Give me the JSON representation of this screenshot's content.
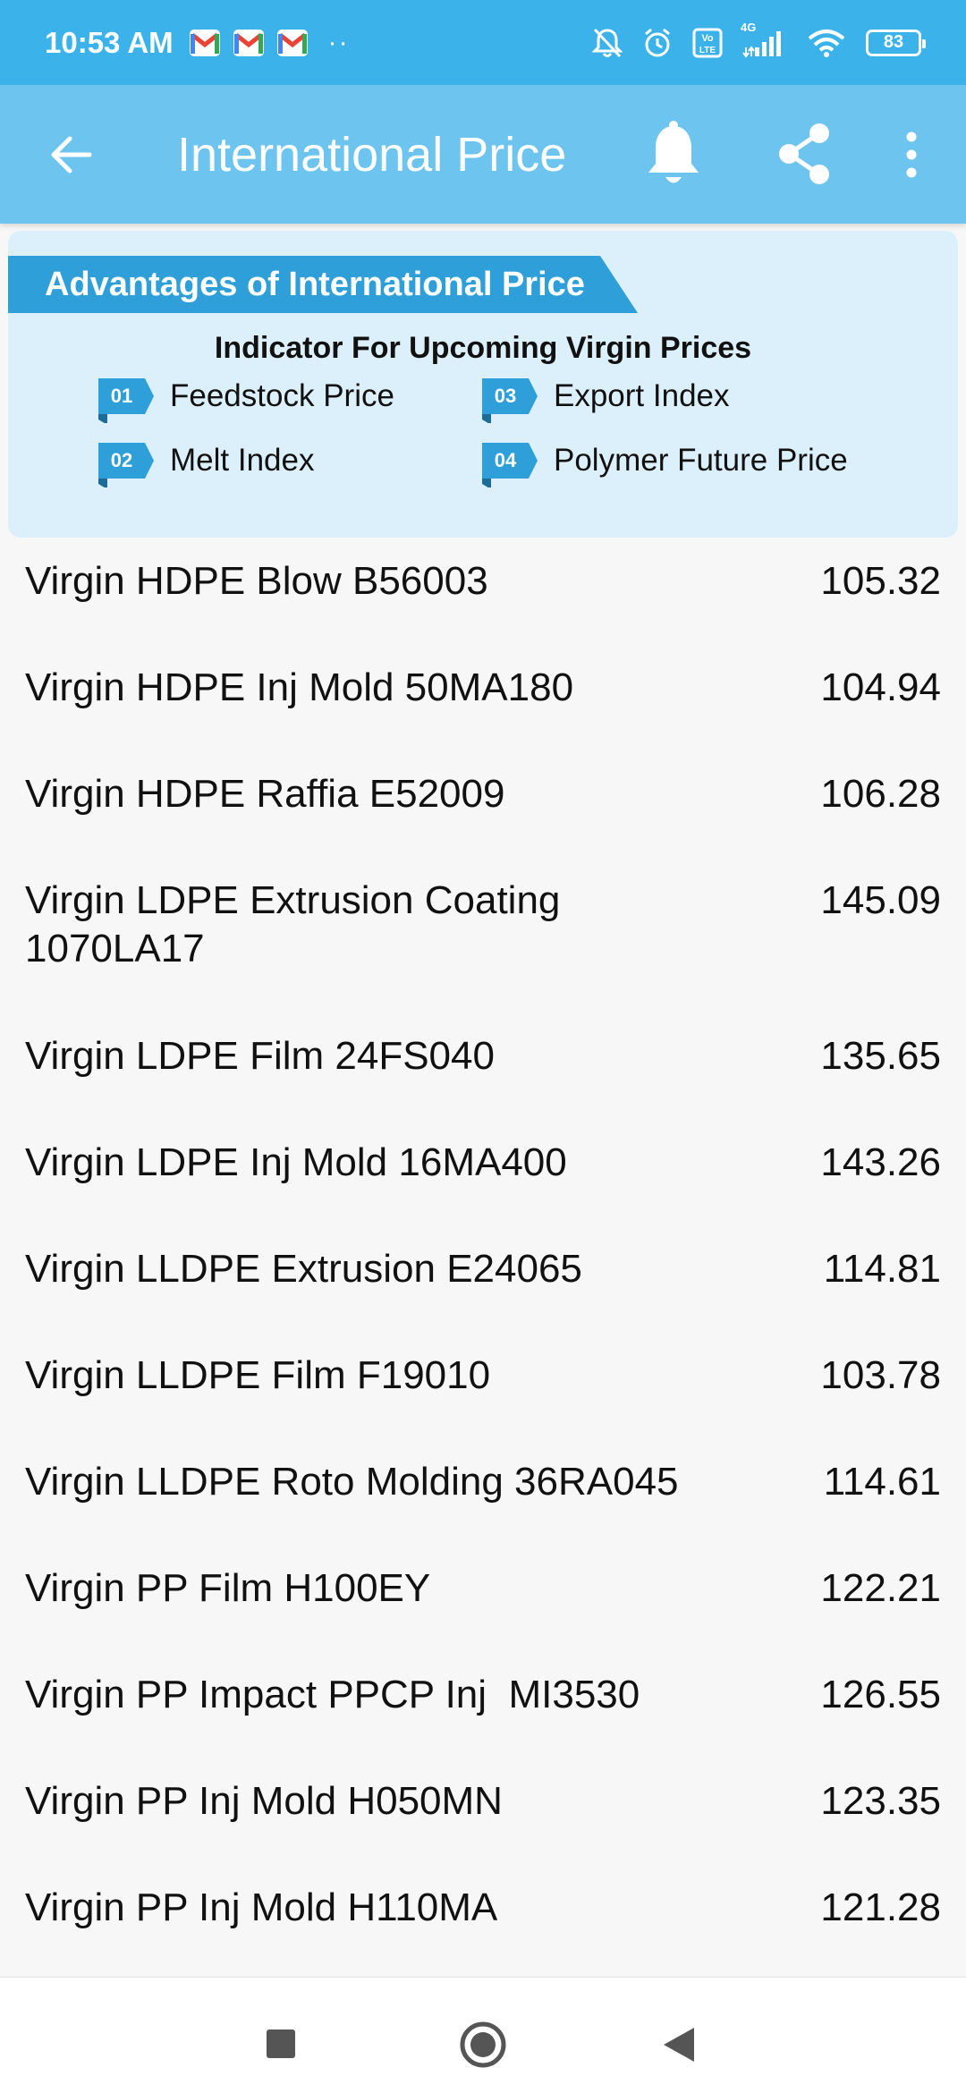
{
  "status_bar": {
    "time": "10:53 AM",
    "more_notifications": "··",
    "network_label": "4G",
    "volte_label": "Vo LTE",
    "battery": "83"
  },
  "app_bar": {
    "title": "International Price",
    "icons": [
      "back-arrow-icon",
      "bell-icon",
      "share-icon",
      "more-vert-icon"
    ]
  },
  "banner": {
    "title": "Advantages of International Price",
    "subtitle": "Indicator For Upcoming Virgin Prices",
    "indicators": [
      {
        "num": "01",
        "label": "Feedstock Price"
      },
      {
        "num": "02",
        "label": "Melt Index"
      },
      {
        "num": "03",
        "label": "Export Index"
      },
      {
        "num": "04",
        "label": "Polymer Future Price"
      }
    ]
  },
  "prices": [
    {
      "name": "Virgin HDPE Blow B56003",
      "price": "105.32"
    },
    {
      "name": "Virgin HDPE Inj Mold 50MA180",
      "price": "104.94"
    },
    {
      "name": "Virgin HDPE Raffia E52009",
      "price": "106.28"
    },
    {
      "name": "Virgin LDPE Extrusion Coating 1070LA17",
      "price": "145.09"
    },
    {
      "name": "Virgin LDPE Film 24FS040",
      "price": "135.65"
    },
    {
      "name": "Virgin LDPE Inj Mold 16MA400",
      "price": "143.26"
    },
    {
      "name": "Virgin LLDPE Extrusion E24065",
      "price": "114.81"
    },
    {
      "name": "Virgin LLDPE Film F19010",
      "price": "103.78"
    },
    {
      "name": "Virgin LLDPE Roto Molding 36RA045",
      "price": "114.61"
    },
    {
      "name": "Virgin PP Film H100EY",
      "price": "122.21"
    },
    {
      "name": "Virgin PP Impact PPCP Inj  MI3530",
      "price": "126.55"
    },
    {
      "name": "Virgin PP Inj Mold H050MN",
      "price": "123.35"
    },
    {
      "name": "Virgin PP Inj Mold H110MA",
      "price": "121.28"
    }
  ],
  "colors": {
    "status_bar": "#3bb3ea",
    "app_bar": "#6cc4ef",
    "banner_bg": "#dcf0fb",
    "ribbon": "#2f9fd9"
  }
}
